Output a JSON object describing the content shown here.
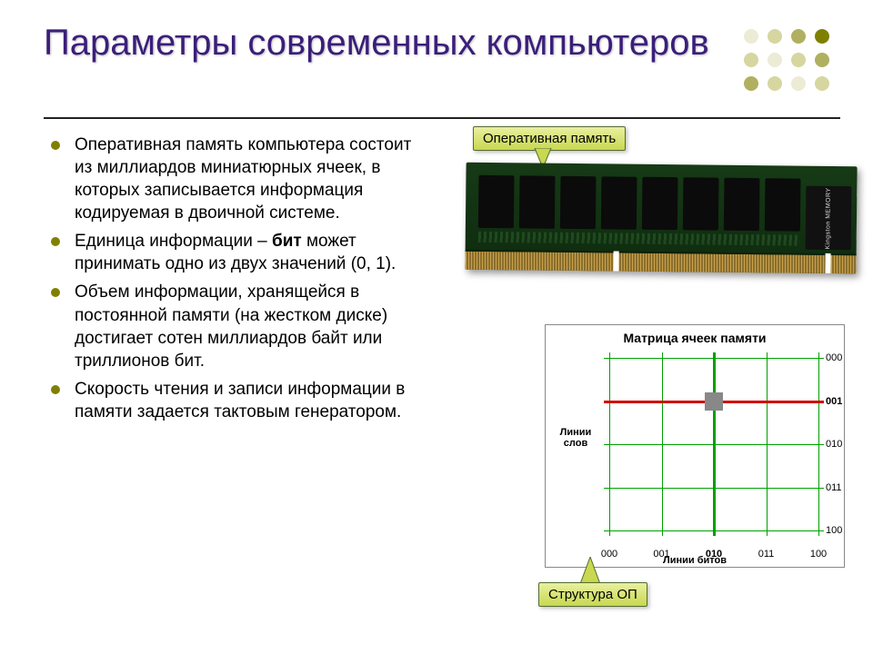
{
  "title": "Параметры современных компьютеров",
  "colors": {
    "title_text": "#3b1e7a",
    "bullet_dot": "#808000",
    "callout_bg_top": "#e8f0a0",
    "callout_bg_bottom": "#c8d850",
    "callout_border": "#556b2f",
    "ram_pcb": "#163a16",
    "ram_contact": "#caa24a",
    "grid_line": "#00a000",
    "sel_row": "#d00000",
    "sel_cell": "#888888",
    "diagram_border": "#888888"
  },
  "logo": {
    "rows": 3,
    "cols": 4,
    "dot_radius": 8,
    "spacing": 26,
    "palette": [
      "#808000",
      "#b0b060",
      "#d6d6a0",
      "#ececd6"
    ],
    "pattern": [
      [
        3,
        2,
        1,
        0
      ],
      [
        2,
        3,
        2,
        1
      ],
      [
        1,
        2,
        3,
        2
      ]
    ]
  },
  "bullets": [
    {
      "text": "Оперативная память компьютера состоит из миллиардов миниатюрных ячеек, в которых записывается информация кодируемая в двоичной системе."
    },
    {
      "prefix": "Единица информации – ",
      "bold": "бит",
      "suffix": " может принимать одно из двух значений (0, 1)."
    },
    {
      "text": "Объем информации, хранящейся в постоянной памяти (на жестком диске) достигает сотен миллиардов байт или триллионов бит."
    },
    {
      "text": "Скорость чтения и записи информации в памяти задается тактовым генератором."
    }
  ],
  "callouts": {
    "ram": "Оперативная память",
    "struct": "Структура ОП"
  },
  "ram": {
    "chip_count": 8,
    "notch_positions_pct": [
      38,
      92
    ],
    "label_text": "Kingston MEMORY"
  },
  "matrix": {
    "title": "Матрица ячеек памяти",
    "rows_label": "Линии слов",
    "cols_label": "Линии битов",
    "row_ticks": [
      "000",
      "001",
      "010",
      "011",
      "100"
    ],
    "col_ticks": [
      "000",
      "001",
      "010",
      "011",
      "100"
    ],
    "selected_row_index": 1,
    "selected_col_index": 2,
    "row_label_fontsize": 11,
    "col_label_fontsize": 11,
    "title_fontsize": 14,
    "selected_row_color": "#d00000",
    "selected_col_color": "#00a000",
    "grid_color": "#00a000"
  }
}
